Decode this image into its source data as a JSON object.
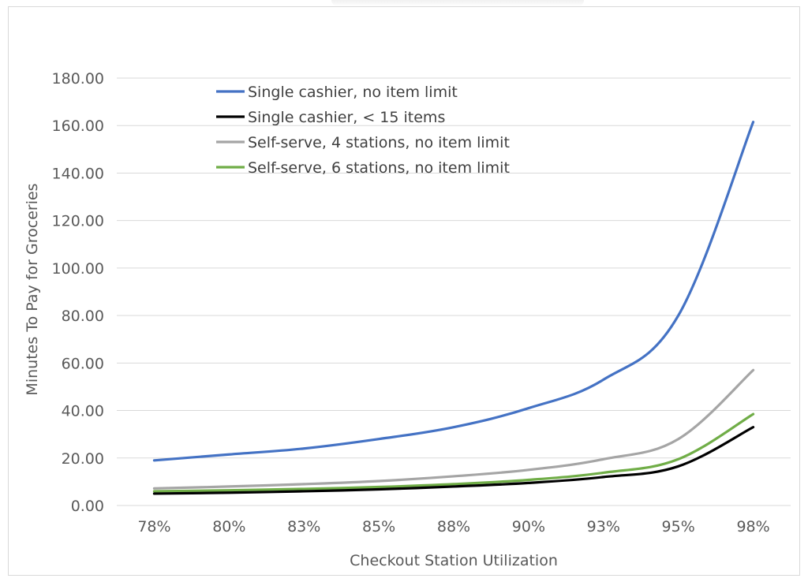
{
  "chart_data": {
    "type": "line",
    "title": "",
    "xlabel": "Checkout Station Utilization",
    "ylabel": "Minutes To Pay for Groceries",
    "categories": [
      "78%",
      "80%",
      "83%",
      "85%",
      "88%",
      "90%",
      "93%",
      "95%",
      "98%"
    ],
    "y_ticks": [
      "0.00",
      "20.00",
      "40.00",
      "60.00",
      "80.00",
      "100.00",
      "120.00",
      "140.00",
      "160.00",
      "180.00"
    ],
    "ylim": [
      0,
      180
    ],
    "grid": "horizontal",
    "legend_position": "top-left",
    "series": [
      {
        "name": "Single cashier, no item limit",
        "color": "#4472c4",
        "values": [
          19.0,
          21.5,
          24.0,
          28.0,
          33.0,
          41.0,
          53.0,
          80.0,
          161.5
        ]
      },
      {
        "name": "Single cashier, < 15 items",
        "color": "#000000",
        "values": [
          5.0,
          5.4,
          6.0,
          6.8,
          8.0,
          9.5,
          12.0,
          16.5,
          33.0
        ]
      },
      {
        "name": "Self-serve, 4 stations, no item limit",
        "color": "#a5a5a5",
        "values": [
          7.2,
          8.0,
          9.0,
          10.3,
          12.3,
          15.0,
          19.5,
          28.0,
          57.0
        ]
      },
      {
        "name": "Self-serve, 6 stations, no item limit",
        "color": "#70ad47",
        "values": [
          6.0,
          6.4,
          7.0,
          7.8,
          9.0,
          10.8,
          13.8,
          19.5,
          38.5
        ]
      }
    ]
  }
}
